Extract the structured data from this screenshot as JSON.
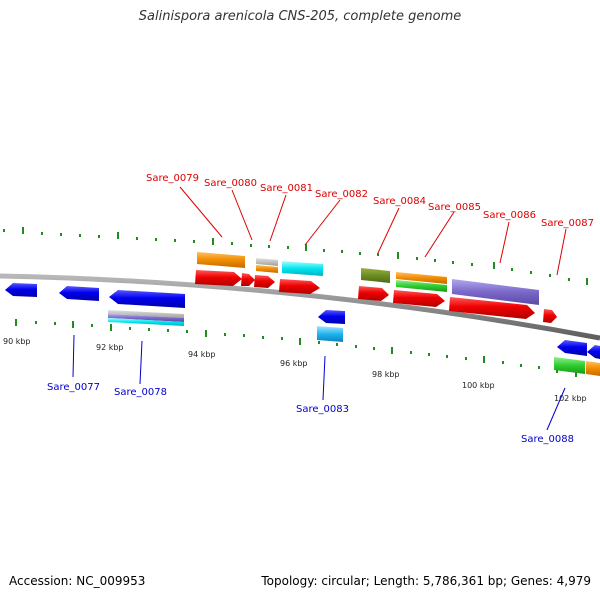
{
  "title": "Salinispora arenicola CNS-205, complete genome",
  "footer": {
    "accession": "Accession: NC_009953",
    "stats": "Topology: circular; Length: 5,786,361 bp; Genes: 4,979"
  },
  "colors": {
    "forward_label": "#dd0000",
    "reverse_label": "#0000cc",
    "backbone": "#8c8c8c",
    "tick": "#228b22"
  },
  "scale_labels": [
    "90 kbp",
    "92 kbp",
    "94 kbp",
    "96 kbp",
    "98 kbp",
    "100 kbp",
    "102 kbp"
  ],
  "forward_genes": [
    "Sare_0079",
    "Sare_0080",
    "Sare_0081",
    "Sare_0082",
    "Sare_0084",
    "Sare_0085",
    "Sare_0086",
    "Sare_0087"
  ],
  "reverse_genes": [
    "Sare_0077",
    "Sare_0078",
    "Sare_0083",
    "Sare_0088"
  ]
}
